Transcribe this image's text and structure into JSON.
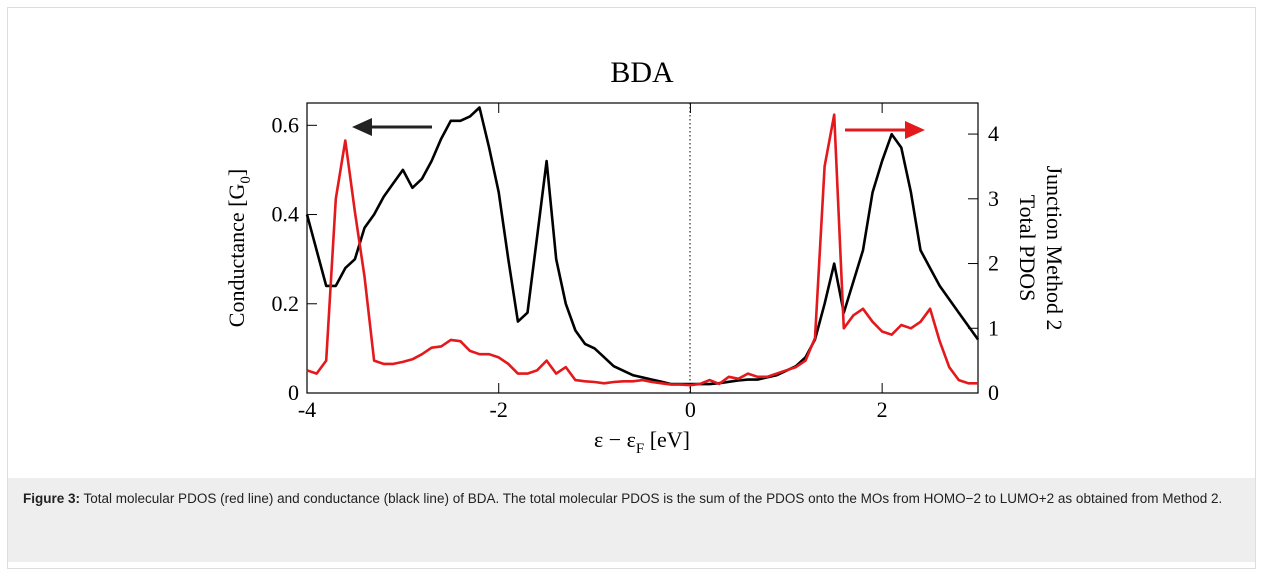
{
  "chart_data": {
    "type": "line",
    "title": "BDA",
    "xlabel_parts": [
      "ε − ε",
      "F",
      " [eV]"
    ],
    "ylabel_parts": [
      "Conductance [G",
      "0",
      "]"
    ],
    "y2label_lines": [
      "Total PDOS",
      "Junction Method 2"
    ],
    "xlim": [
      -4,
      3
    ],
    "xticks": [
      -4,
      -2,
      0,
      2
    ],
    "ylim": [
      0,
      0.65
    ],
    "yticks": [
      0,
      0.2,
      0.4,
      0.6
    ],
    "y2lim": [
      0,
      4.48
    ],
    "y2ticks": [
      0,
      1,
      2,
      3,
      4
    ],
    "x": [
      -4.0,
      -3.9,
      -3.8,
      -3.7,
      -3.6,
      -3.5,
      -3.4,
      -3.3,
      -3.2,
      -3.1,
      -3.0,
      -2.9,
      -2.8,
      -2.7,
      -2.6,
      -2.5,
      -2.4,
      -2.3,
      -2.2,
      -2.1,
      -2.0,
      -1.9,
      -1.8,
      -1.7,
      -1.6,
      -1.5,
      -1.4,
      -1.3,
      -1.2,
      -1.1,
      -1.0,
      -0.9,
      -0.8,
      -0.7,
      -0.6,
      -0.5,
      -0.4,
      -0.3,
      -0.2,
      -0.1,
      0.0,
      0.1,
      0.2,
      0.3,
      0.4,
      0.5,
      0.6,
      0.7,
      0.8,
      0.9,
      1.0,
      1.1,
      1.2,
      1.3,
      1.4,
      1.5,
      1.6,
      1.7,
      1.8,
      1.9,
      2.0,
      2.1,
      2.2,
      2.3,
      2.4,
      2.5,
      2.6,
      2.7,
      2.8,
      2.9,
      3.0
    ],
    "series": [
      {
        "color": "#000000",
        "axis": "y",
        "values": [
          0.4,
          0.32,
          0.24,
          0.24,
          0.28,
          0.3,
          0.37,
          0.4,
          0.44,
          0.47,
          0.5,
          0.46,
          0.48,
          0.52,
          0.57,
          0.61,
          0.61,
          0.62,
          0.64,
          0.55,
          0.45,
          0.3,
          0.16,
          0.18,
          0.35,
          0.52,
          0.3,
          0.2,
          0.14,
          0.11,
          0.1,
          0.08,
          0.06,
          0.05,
          0.04,
          0.035,
          0.03,
          0.025,
          0.02,
          0.02,
          0.02,
          0.02,
          0.02,
          0.022,
          0.025,
          0.028,
          0.03,
          0.03,
          0.035,
          0.04,
          0.05,
          0.06,
          0.08,
          0.12,
          0.2,
          0.29,
          0.18,
          0.25,
          0.32,
          0.45,
          0.52,
          0.58,
          0.55,
          0.45,
          0.32,
          0.28,
          0.24,
          0.21,
          0.18,
          0.15,
          0.12
        ]
      },
      {
        "color": "#e3191c",
        "axis": "y2",
        "values": [
          0.35,
          0.3,
          0.5,
          3.0,
          3.9,
          2.8,
          1.8,
          0.5,
          0.45,
          0.45,
          0.48,
          0.52,
          0.6,
          0.7,
          0.72,
          0.82,
          0.8,
          0.65,
          0.6,
          0.6,
          0.55,
          0.45,
          0.3,
          0.3,
          0.35,
          0.5,
          0.3,
          0.4,
          0.2,
          0.18,
          0.17,
          0.15,
          0.17,
          0.18,
          0.18,
          0.2,
          0.17,
          0.15,
          0.13,
          0.13,
          0.12,
          0.14,
          0.2,
          0.14,
          0.25,
          0.22,
          0.3,
          0.25,
          0.25,
          0.3,
          0.35,
          0.4,
          0.5,
          0.85,
          3.5,
          4.3,
          1.0,
          1.2,
          1.3,
          1.1,
          0.95,
          0.9,
          1.05,
          1.0,
          1.1,
          1.3,
          0.8,
          0.4,
          0.2,
          0.15,
          0.15
        ]
      }
    ]
  },
  "caption": {
    "label": "Figure 3:",
    "text": " Total molecular PDOS (red line) and conductance (black line) of BDA. The total molecular PDOS is the sum of the PDOS onto the MOs from HOMO−2 to LUMO+2 as obtained from Method 2."
  }
}
